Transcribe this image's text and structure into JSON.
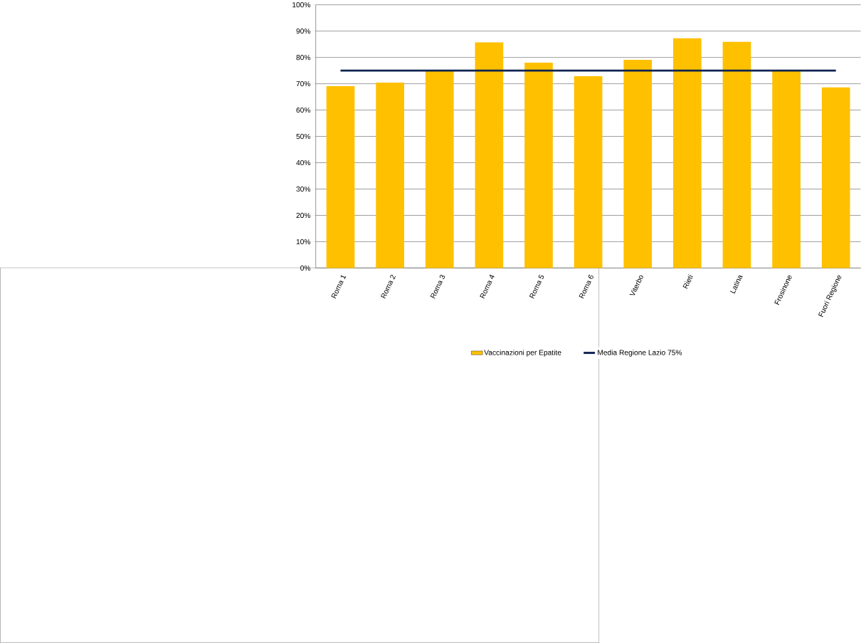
{
  "chart_data": {
    "type": "bar",
    "categories": [
      "Roma 1",
      "Roma 2",
      "Roma 3",
      "Roma 4",
      "Roma 5",
      "Roma 6",
      "Viterbo",
      "Rieti",
      "Latina",
      "Frosinone",
      "Fuori Regione"
    ],
    "series": [
      {
        "name": "Vaccinazioni per Epatite",
        "color": "#ffc000",
        "values": [
          69.1,
          70.4,
          75,
          85.7,
          78,
          72.9,
          79.1,
          87.3,
          85.9,
          75,
          68.6
        ]
      },
      {
        "name": "Media Regione Lazio 75%",
        "type": "line",
        "color": "#0d2351",
        "values": [
          75,
          75,
          75,
          75,
          75,
          75,
          75,
          75,
          75,
          75,
          75
        ]
      }
    ],
    "ylim": [
      0,
      100
    ],
    "yticks": [
      {
        "value": 0,
        "label": "0%"
      },
      {
        "value": 10,
        "label": "10%"
      },
      {
        "value": 20,
        "label": "20%"
      },
      {
        "value": 30,
        "label": "30%"
      },
      {
        "value": 40,
        "label": "40%"
      },
      {
        "value": 50,
        "label": "50%"
      },
      {
        "value": 60,
        "label": "60%"
      },
      {
        "value": 70,
        "label": "70%"
      },
      {
        "value": 80,
        "label": "80%"
      },
      {
        "value": 90,
        "label": "90%"
      },
      {
        "value": 100,
        "label": "100%"
      }
    ],
    "grid": "y",
    "legend": "bottom"
  }
}
